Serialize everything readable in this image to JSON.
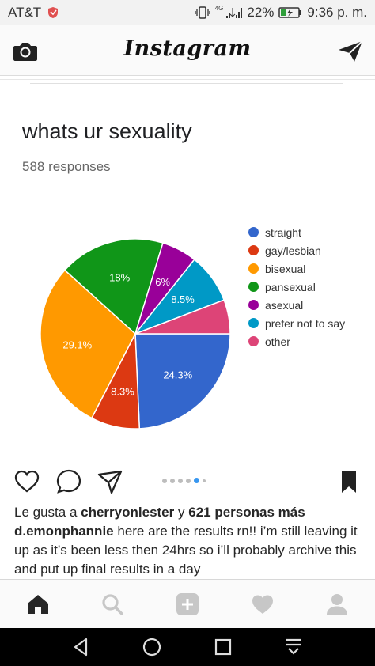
{
  "status_bar": {
    "carrier": "AT&T",
    "network": "4G",
    "battery": "22%",
    "time": "9:36 p. m."
  },
  "header": {
    "logo": "Instagram"
  },
  "post": {
    "form_title": "whats ur sexuality",
    "responses": "588 responses",
    "chart_data": {
      "type": "pie",
      "categories": [
        "straight",
        "gay/lesbian",
        "bisexual",
        "pansexual",
        "asexual",
        "prefer not to say",
        "other"
      ],
      "values": [
        24.3,
        8.3,
        29.1,
        18,
        6,
        8.5,
        5.8
      ],
      "data_labels": [
        "24.3%",
        "8.3%",
        "29.1%",
        "18%",
        "6%",
        "8.5%",
        ""
      ],
      "colors": [
        "#3366cc",
        "#dc3912",
        "#ff9900",
        "#109618",
        "#990099",
        "#0099c6",
        "#dd4477"
      ],
      "legend_placement": "right"
    },
    "carousel": {
      "count": 6,
      "active_index": 4
    },
    "likes": {
      "prefix": "Le gusta a",
      "user": "cherryonlester",
      "joiner": "y",
      "others": "621 personas más"
    },
    "caption": {
      "username": "d.emonphannie",
      "text": "here are the results rn!! i’m still leaving it up as it’s been less then 24hrs so i’ll probably archive this and put up final results in a day"
    }
  },
  "icons": {
    "camera": "camera-icon",
    "direct": "paper-plane-icon",
    "like": "heart-icon",
    "comment": "comment-icon",
    "share": "share-icon",
    "save": "bookmark-icon",
    "home": "home-icon",
    "search": "search-icon",
    "new_post": "plus-square-icon",
    "activity": "heart-icon",
    "profile": "person-icon"
  },
  "colors": {
    "accent": "#3897f0",
    "active_nav": "#262626",
    "inactive_nav": "#c7c7c7"
  }
}
